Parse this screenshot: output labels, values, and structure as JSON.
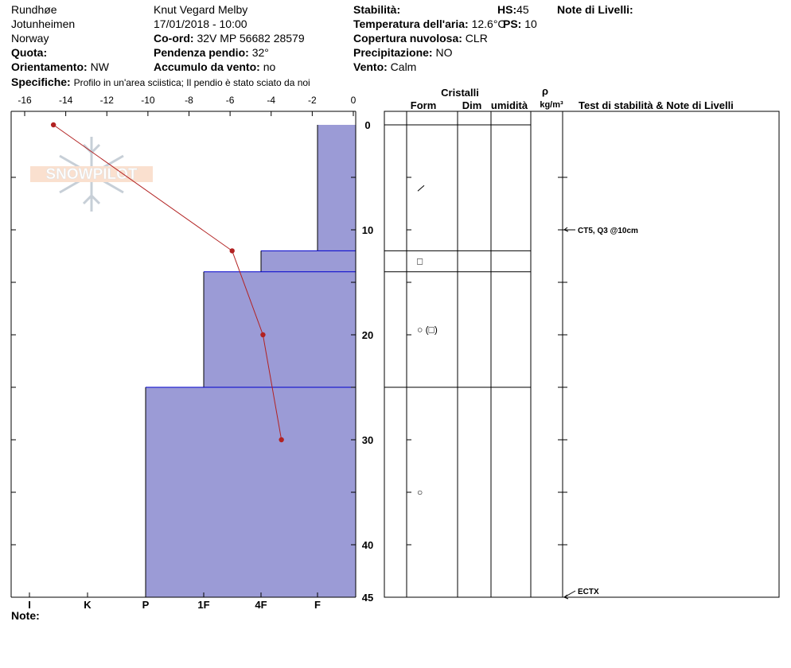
{
  "header": {
    "location": "Rundhøe",
    "range": "Jotunheimen",
    "country": "Norway",
    "elevation_label": "Quota:",
    "aspect_label": "Orientamento:",
    "aspect_value": "NW",
    "specifics_label": "Specifiche:",
    "specifics_value": "Profilo in un'area sciistica; Il pendio è stato sciato da noi",
    "observer": "Knut Vegard Melby",
    "datetime": "17/01/2018 - 10:00",
    "coord_label": "Co-ord:",
    "coord_value": "32V MP 56682 28579",
    "slope_label": "Pendenza pendio:",
    "slope_value": "32°",
    "wind_loading_label": "Accumulo da vento:",
    "wind_loading_value": "no",
    "stability_label": "Stabilità:",
    "air_temp_label": "Temperatura dell'aria:",
    "air_temp_value": "12.6°C",
    "sky_label": "Copertura nuvolosa:",
    "sky_value": "CLR",
    "precip_label": "Precipitazione:",
    "precip_value": "NO",
    "wind_label": "Vento:",
    "wind_value": "Calm",
    "hs_label": "HS:",
    "hs_value": "45",
    "ps_label": "PS:",
    "ps_value": "10",
    "layer_notes_label": "Note di Livelli:"
  },
  "footer": {
    "notes_label": "Note:"
  },
  "logo_text": "SNOWPILOT",
  "table_headers": {
    "crystals": "Cristalli",
    "form": "Form",
    "size": "Dim",
    "moisture": "umidità",
    "rho": "ρ",
    "density_unit": "kg/m³",
    "tests": "Test di stabilità & Note di Livelli"
  },
  "colors": {
    "hardness_fill": "#9b9bd6",
    "hardness_edge": "#0000cc",
    "temperature": "#b22222"
  },
  "chart_data": {
    "type": "snow_profile",
    "x_temp_ticks": [
      "-16",
      "-14",
      "-12",
      "-10",
      "-8",
      "-6",
      "-4",
      "-2",
      "0"
    ],
    "hardness_labels": [
      "I",
      "K",
      "P",
      "1F",
      "4F",
      "F"
    ],
    "depth_ticks": [
      "0",
      "10",
      "20",
      "30",
      "40",
      "45"
    ],
    "depth_range": [
      0,
      45
    ],
    "temp_range": [
      -16,
      0
    ],
    "temperature_profile": [
      {
        "depth": 0,
        "temp": -14.6
      },
      {
        "depth": 12,
        "temp": -5.9
      },
      {
        "depth": 20,
        "temp": -4.4
      },
      {
        "depth": 30,
        "temp": -3.5
      }
    ],
    "hardness_layers": [
      {
        "top": 0,
        "bottom": 12,
        "hardness": "F"
      },
      {
        "top": 12,
        "bottom": 14,
        "hardness": "4F"
      },
      {
        "top": 14,
        "bottom": 25,
        "hardness": "1F"
      },
      {
        "top": 25,
        "bottom": 45,
        "hardness": "P"
      }
    ],
    "layer_boundaries": [
      12,
      14,
      25
    ],
    "crystal_forms": [
      {
        "depth": 6,
        "symbol": "/"
      },
      {
        "depth": 13,
        "symbol": "□"
      },
      {
        "depth": 19.5,
        "symbol": "○ (□)"
      },
      {
        "depth": 35,
        "symbol": "○"
      }
    ],
    "stability_tests": [
      {
        "depth": 10,
        "text": "CT5, Q3 @10cm"
      },
      {
        "depth": 45,
        "text": "ECTX"
      }
    ]
  }
}
